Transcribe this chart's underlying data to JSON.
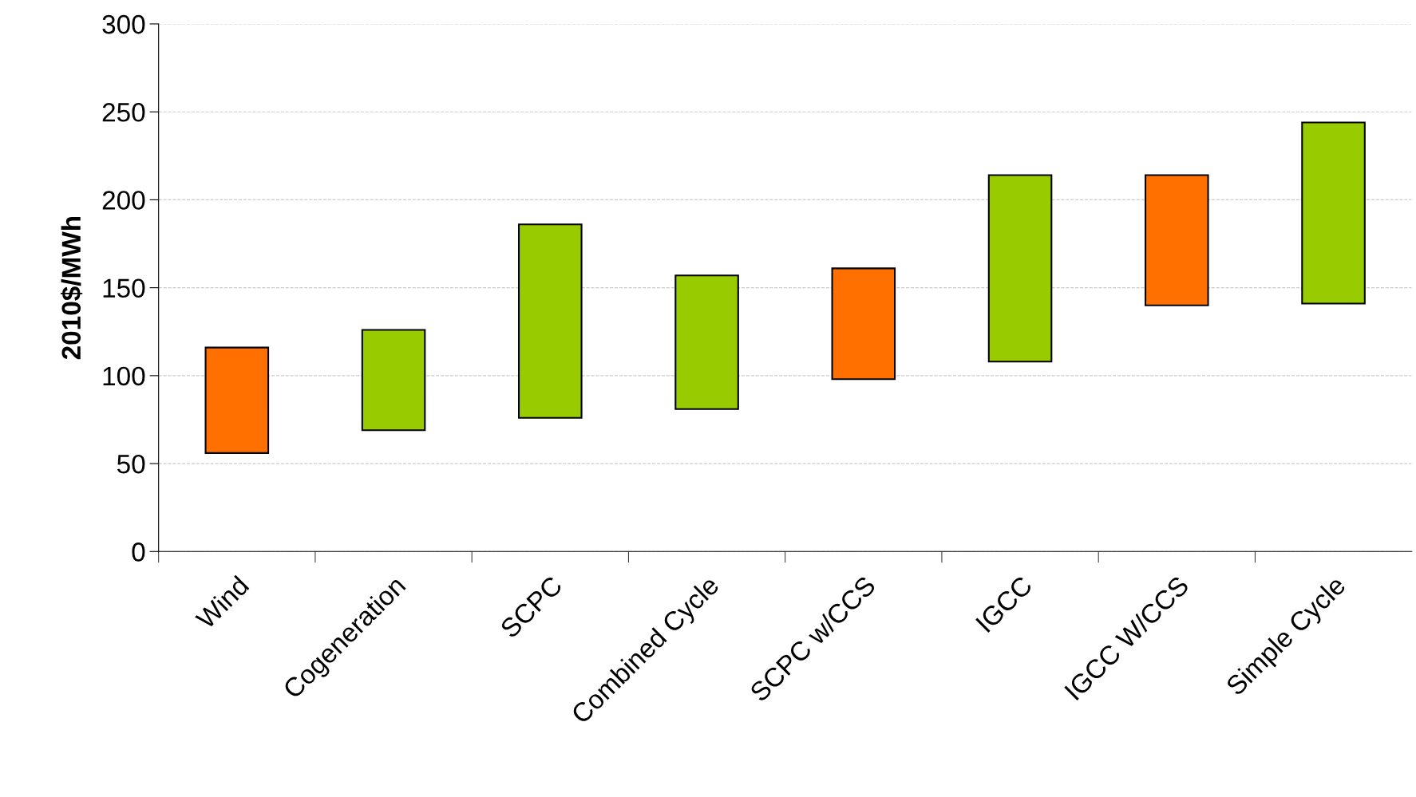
{
  "chart_data": {
    "type": "bar",
    "ylabel": "2010$/MWh",
    "categories": [
      "Wind",
      "Cogeneration",
      "SCPC",
      "Combined Cycle",
      "SCPC w/CCS",
      "IGCC",
      "IGCC W/CCS",
      "Simple Cycle"
    ],
    "base": [
      56,
      69,
      76,
      81,
      98,
      108,
      140,
      141
    ],
    "values": [
      60,
      57,
      110,
      76,
      63,
      106,
      74,
      103
    ],
    "colors": [
      "#ff7000",
      "#99cc00",
      "#99cc00",
      "#99cc00",
      "#ff7000",
      "#99cc00",
      "#ff7000",
      "#99cc00"
    ],
    "ylim": [
      0,
      300
    ],
    "yticks": [
      0,
      50,
      100,
      150,
      200,
      250,
      300
    ],
    "grid": "y",
    "legend": false
  }
}
